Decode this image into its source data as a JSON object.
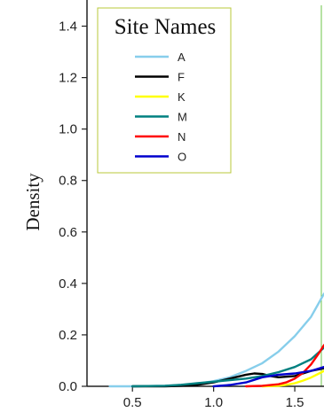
{
  "chart_data": {
    "type": "line",
    "title": "",
    "xlabel": "",
    "ylabel": "Density",
    "xlim": [
      0.22,
      1.68
    ],
    "ylim": [
      0.0,
      1.45
    ],
    "x_ticks": [
      0.5,
      1.0,
      1.5
    ],
    "y_ticks": [
      0.0,
      0.2,
      0.4,
      0.6,
      0.8,
      1.0,
      1.2,
      1.4
    ],
    "legend": {
      "title": "Site Names",
      "placement": "top-left"
    },
    "grid": false,
    "series": [
      {
        "name": "A",
        "color": "#87ceeb",
        "x": [
          0.36,
          0.5,
          0.6,
          0.7,
          0.8,
          0.9,
          1.0,
          1.1,
          1.2,
          1.3,
          1.4,
          1.5,
          1.6,
          1.68
        ],
        "y": [
          0.0,
          0.0,
          0.001,
          0.002,
          0.005,
          0.01,
          0.02,
          0.035,
          0.06,
          0.09,
          0.135,
          0.195,
          0.27,
          0.36
        ]
      },
      {
        "name": "F",
        "color": "#000000",
        "x": [
          0.5,
          0.7,
          0.8,
          0.9,
          1.0,
          1.1,
          1.2,
          1.25,
          1.3,
          1.35,
          1.4,
          1.5,
          1.6,
          1.68
        ],
        "y": [
          0.0,
          0.0,
          0.002,
          0.006,
          0.015,
          0.03,
          0.045,
          0.05,
          0.048,
          0.04,
          0.035,
          0.04,
          0.06,
          0.07
        ]
      },
      {
        "name": "K",
        "color": "#ffff00",
        "x": [
          1.3,
          1.4,
          1.45,
          1.5,
          1.55,
          1.6,
          1.65,
          1.68
        ],
        "y": [
          0.0,
          0.002,
          0.006,
          0.012,
          0.022,
          0.034,
          0.05,
          0.06
        ]
      },
      {
        "name": "M",
        "color": "#008080",
        "x": [
          0.5,
          0.7,
          0.8,
          0.9,
          1.0,
          1.1,
          1.2,
          1.3,
          1.4,
          1.5,
          1.6,
          1.68
        ],
        "y": [
          0.0,
          0.002,
          0.006,
          0.012,
          0.018,
          0.024,
          0.03,
          0.04,
          0.055,
          0.075,
          0.105,
          0.15
        ]
      },
      {
        "name": "N",
        "color": "#ff0000",
        "x": [
          1.2,
          1.3,
          1.4,
          1.45,
          1.5,
          1.55,
          1.6,
          1.65,
          1.68
        ],
        "y": [
          0.0,
          0.002,
          0.008,
          0.016,
          0.03,
          0.052,
          0.085,
          0.13,
          0.16
        ]
      },
      {
        "name": "O",
        "color": "#0000cd",
        "x": [
          1.0,
          1.1,
          1.2,
          1.25,
          1.3,
          1.4,
          1.5,
          1.6,
          1.68
        ],
        "y": [
          0.0,
          0.005,
          0.015,
          0.025,
          0.035,
          0.045,
          0.05,
          0.06,
          0.075
        ]
      }
    ]
  },
  "colors": {
    "axis": "#222222",
    "plot_border": "#6cc54a",
    "legend_border": "#b8c83a"
  }
}
